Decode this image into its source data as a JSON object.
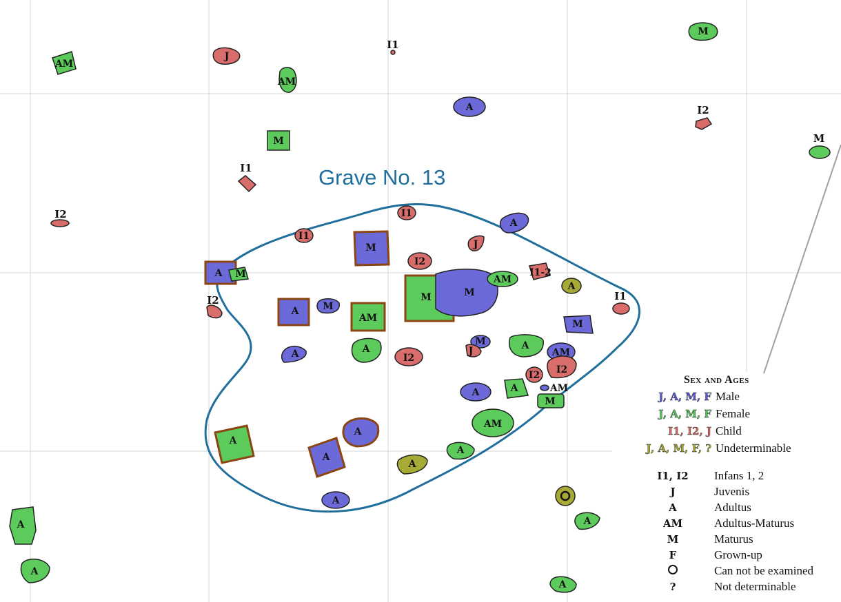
{
  "diagram": {
    "title": "Grave No. 13",
    "colors": {
      "male": "#6c6ad8",
      "female": "#5ccb5c",
      "child": "#d86d6b",
      "undeterminable": "#a8aa36",
      "boundary": "#1f6e9c",
      "grid": "#d4d4d4",
      "coffin_frame": "#8b4513"
    },
    "burials": [
      {
        "label": "AM",
        "sex": "female"
      },
      {
        "label": "J",
        "sex": "child"
      },
      {
        "label": "AM",
        "sex": "female"
      },
      {
        "label": "I1",
        "sex": "child"
      },
      {
        "label": "A",
        "sex": "male"
      },
      {
        "label": "M",
        "sex": "female"
      },
      {
        "label": "M",
        "sex": "female"
      },
      {
        "label": "I2",
        "sex": "child"
      },
      {
        "label": "M",
        "sex": "female"
      },
      {
        "label": "I1",
        "sex": "child"
      },
      {
        "label": "I2",
        "sex": "child"
      },
      {
        "label": "I1",
        "sex": "child"
      },
      {
        "label": "A",
        "sex": "male"
      },
      {
        "label": "I1",
        "sex": "child"
      },
      {
        "label": "M",
        "sex": "male"
      },
      {
        "label": "J",
        "sex": "child"
      },
      {
        "label": "I2",
        "sex": "child"
      },
      {
        "label": "A",
        "sex": "male"
      },
      {
        "label": "M",
        "sex": "female"
      },
      {
        "label": "I2",
        "sex": "child"
      },
      {
        "label": "A",
        "sex": "male"
      },
      {
        "label": "M",
        "sex": "male"
      },
      {
        "label": "AM",
        "sex": "female"
      },
      {
        "label": "M",
        "sex": "female"
      },
      {
        "label": "M",
        "sex": "male"
      },
      {
        "label": "AM",
        "sex": "female"
      },
      {
        "label": "I1-2",
        "sex": "child"
      },
      {
        "label": "A",
        "sex": "undeterminable"
      },
      {
        "label": "I1",
        "sex": "child"
      },
      {
        "label": "M",
        "sex": "male"
      },
      {
        "label": "A",
        "sex": "male"
      },
      {
        "label": "A",
        "sex": "female"
      },
      {
        "label": "I2",
        "sex": "child"
      },
      {
        "label": "M",
        "sex": "male"
      },
      {
        "label": "J",
        "sex": "child"
      },
      {
        "label": "A",
        "sex": "female"
      },
      {
        "label": "AM",
        "sex": "male"
      },
      {
        "label": "I2",
        "sex": "child"
      },
      {
        "label": "I2",
        "sex": "child"
      },
      {
        "label": "AM",
        "sex": "male"
      },
      {
        "label": "A",
        "sex": "male"
      },
      {
        "label": "A",
        "sex": "female"
      },
      {
        "label": "M",
        "sex": "female"
      },
      {
        "label": "AM",
        "sex": "female"
      },
      {
        "label": "A",
        "sex": "female"
      },
      {
        "label": "A",
        "sex": "male"
      },
      {
        "label": "A",
        "sex": "male"
      },
      {
        "label": "A",
        "sex": "female"
      },
      {
        "label": "A",
        "sex": "undeterminable"
      },
      {
        "label": "A",
        "sex": "male"
      },
      {
        "label": "A",
        "sex": "female"
      },
      {
        "label": "A",
        "sex": "female"
      },
      {
        "label": "A",
        "sex": "female"
      },
      {
        "label": "A",
        "sex": "female"
      }
    ]
  },
  "legend": {
    "title": "Sex and Ages",
    "sex_rows": [
      {
        "key": "J, A, M, F",
        "desc": "Male",
        "color": "male"
      },
      {
        "key": "J, A, M, F",
        "desc": "Female",
        "color": "female"
      },
      {
        "key": "I1, I2, J",
        "desc": "Child",
        "color": "child"
      },
      {
        "key": "J, A, M, F, ?",
        "desc": "Undeterminable",
        "color": "undeterminable"
      }
    ],
    "age_rows": [
      {
        "key": "I1, I2",
        "desc": "Infans 1, 2"
      },
      {
        "key": "J",
        "desc": "Juvenis"
      },
      {
        "key": "A",
        "desc": "Adultus"
      },
      {
        "key": "AM",
        "desc": "Adultus-Maturus"
      },
      {
        "key": "M",
        "desc": "Maturus"
      },
      {
        "key": "F",
        "desc": "Grown-up"
      },
      {
        "key": "O",
        "desc": "Can not be examined",
        "icon": "ring-icon"
      },
      {
        "key": "?",
        "desc": "Not determinable"
      }
    ]
  }
}
